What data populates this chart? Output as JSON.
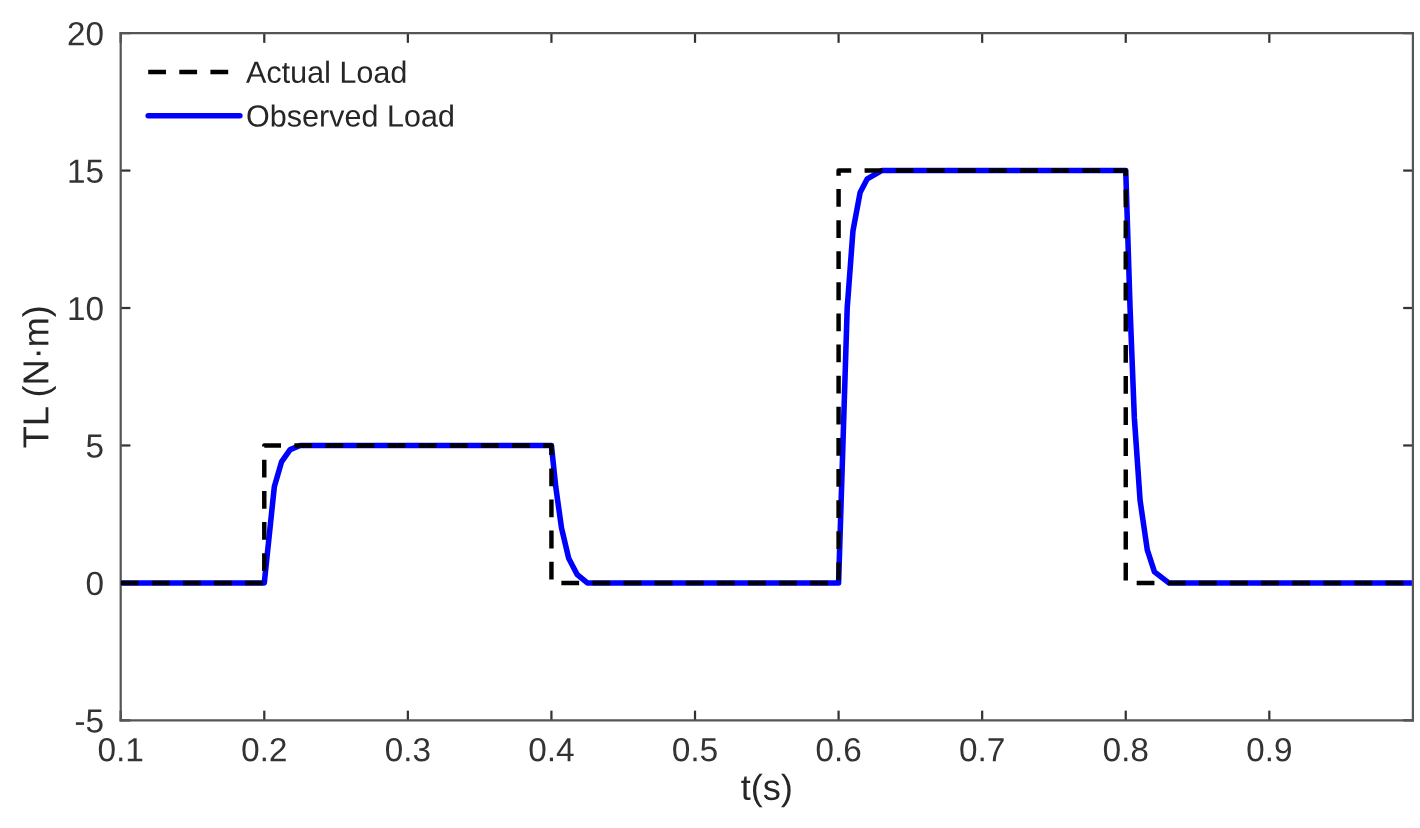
{
  "chart_data": {
    "type": "line",
    "xlabel": "t(s)",
    "ylabel": "TL (N·m)",
    "xlim": [
      0.1,
      1.0
    ],
    "xticks": [
      0.1,
      0.2,
      0.3,
      0.4,
      0.5,
      0.6,
      0.7,
      0.8,
      0.9
    ],
    "ylim": [
      -5,
      20
    ],
    "yticks": [
      -5,
      0,
      5,
      10,
      15,
      20
    ],
    "grid": false,
    "legend": "top left",
    "series": [
      {
        "name": "Actual Load",
        "color": "#000000",
        "line_style": "dashed",
        "x": [
          0.1,
          0.2,
          0.2,
          0.4,
          0.4,
          0.6,
          0.6,
          0.8,
          0.8,
          1.0
        ],
        "values": [
          0,
          0,
          5,
          5,
          0,
          0,
          15,
          15,
          0,
          0
        ]
      },
      {
        "name": "Observed Load",
        "color": "#0000ff",
        "line_style": "solid",
        "x": [
          0.1,
          0.2,
          0.203,
          0.207,
          0.212,
          0.218,
          0.225,
          0.4,
          0.403,
          0.407,
          0.412,
          0.418,
          0.425,
          0.6,
          0.603,
          0.606,
          0.61,
          0.615,
          0.62,
          0.63,
          0.8,
          0.803,
          0.806,
          0.81,
          0.815,
          0.82,
          0.83,
          1.0
        ],
        "values": [
          0,
          0,
          1.5,
          3.5,
          4.4,
          4.85,
          5,
          5,
          3.5,
          2,
          0.9,
          0.3,
          0,
          0,
          5,
          10,
          12.8,
          14.2,
          14.7,
          15,
          15,
          10,
          6,
          3,
          1.2,
          0.4,
          0,
          0
        ]
      }
    ]
  }
}
